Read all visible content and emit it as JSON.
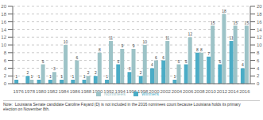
{
  "chart_data": {
    "type": "bar",
    "categories": [
      "1976",
      "1978",
      "1980",
      "1982",
      "1984",
      "1986",
      "1988",
      "1990",
      "1992",
      "1994",
      "1996",
      "1998",
      "2000",
      "2002",
      "2004",
      "2006",
      "2008",
      "2010",
      "2012",
      "2014",
      "2016"
    ],
    "series": [
      {
        "name": "Winners",
        "color": "#4bacc6",
        "values": [
          1,
          2,
          1,
          1,
          1,
          1,
          1,
          2,
          1,
          5,
          3,
          2,
          4,
          6,
          1,
          5,
          8,
          7,
          5,
          11,
          4
        ]
      },
      {
        "name": "Nominees",
        "color": "#9dc3c7",
        "values": [
          0,
          1,
          5,
          3,
          10,
          6,
          2,
          8,
          11,
          9,
          9,
          10,
          6,
          11,
          5,
          12,
          8,
          15,
          18,
          15,
          15
        ],
        "value_labels": [
          null,
          "1",
          "5",
          "3",
          "10",
          "6",
          "2",
          "8",
          "11",
          "9",
          "9",
          "10",
          "6",
          "11",
          "5",
          "12",
          "8",
          "15",
          "18",
          "15",
          "15"
        ]
      }
    ],
    "ylim": [
      0,
      20
    ],
    "yticks": [
      0,
      2,
      4,
      6,
      8,
      10,
      12,
      14,
      16,
      18,
      20
    ],
    "grid": true,
    "legend": "bottom",
    "data_labels": true,
    "annotations": [
      "Note:  Louisiana Senate candidate Caroline Fayard (D) is not included in the 2016 nominees count because Louisiana holds its primary",
      "election on November 8th."
    ]
  }
}
